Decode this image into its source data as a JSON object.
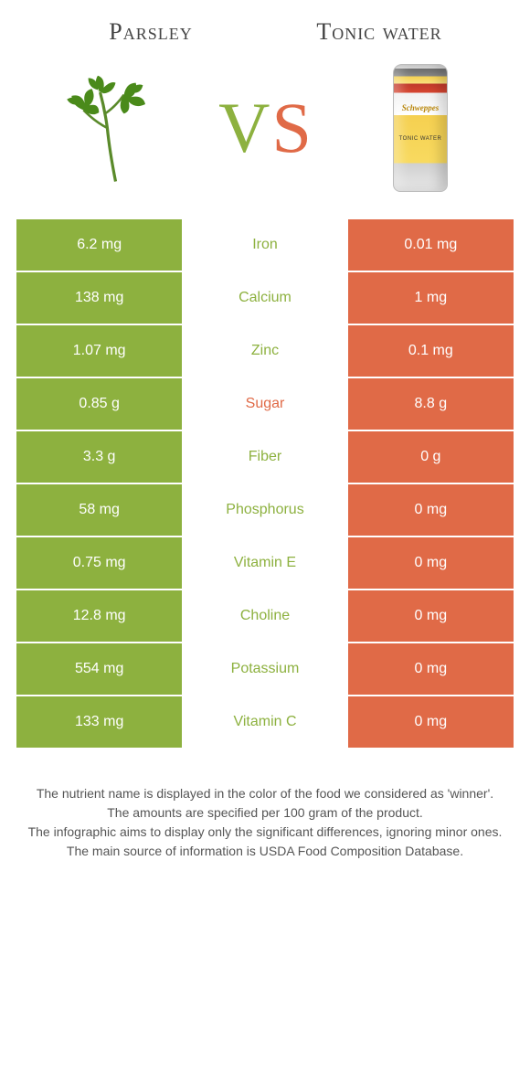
{
  "header": {
    "left_title": "Parsley",
    "right_title": "Tonic water",
    "vs_v": "V",
    "vs_s": "S"
  },
  "can": {
    "brand": "Schweppes",
    "sub": "TONIC WATER"
  },
  "colors": {
    "green": "#8db13f",
    "orange": "#e06a47",
    "text": "#555555",
    "background": "#ffffff"
  },
  "rows": [
    {
      "left": "6.2 mg",
      "label": "Iron",
      "right": "0.01 mg",
      "winner": "green"
    },
    {
      "left": "138 mg",
      "label": "Calcium",
      "right": "1 mg",
      "winner": "green"
    },
    {
      "left": "1.07 mg",
      "label": "Zinc",
      "right": "0.1 mg",
      "winner": "green"
    },
    {
      "left": "0.85 g",
      "label": "Sugar",
      "right": "8.8 g",
      "winner": "orange"
    },
    {
      "left": "3.3 g",
      "label": "Fiber",
      "right": "0 g",
      "winner": "green"
    },
    {
      "left": "58 mg",
      "label": "Phosphorus",
      "right": "0 mg",
      "winner": "green"
    },
    {
      "left": "0.75 mg",
      "label": "Vitamin E",
      "right": "0 mg",
      "winner": "green"
    },
    {
      "left": "12.8 mg",
      "label": "Choline",
      "right": "0 mg",
      "winner": "green"
    },
    {
      "left": "554 mg",
      "label": "Potassium",
      "right": "0 mg",
      "winner": "green"
    },
    {
      "left": "133 mg",
      "label": "Vitamin C",
      "right": "0 mg",
      "winner": "green"
    }
  ],
  "footnotes": {
    "l1": "The nutrient name is displayed in the color of the food we considered as 'winner'.",
    "l2": "The amounts are specified per 100 gram of the product.",
    "l3": "The infographic aims to display only the significant differences, ignoring minor ones.",
    "l4": "The main source of information is USDA Food Composition Database."
  }
}
